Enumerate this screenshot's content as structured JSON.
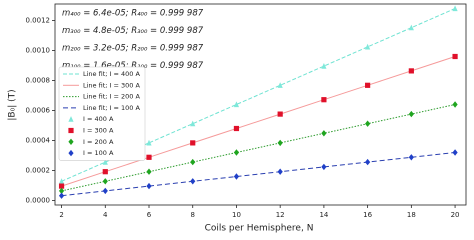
{
  "chart_data": {
    "type": "scatter",
    "xlabel": "Coils per Hemisphere, N",
    "ylabel": "|B₀| (T)",
    "annotations": [
      "m₄₀₀ = 6.4e-05; R₄₀₀ = 0.999 987",
      "m₃₀₀ = 4.8e-05; R₃₀₀ = 0.999 987",
      "m₂₀₀ = 3.2e-05; R₂₀₀ = 0.999 987",
      "m₁₀₀ = 1.6e-05; R₁₀₀ = 0.999 987"
    ],
    "x": [
      2,
      4,
      6,
      8,
      10,
      12,
      14,
      16,
      18,
      20
    ],
    "xlim": [
      1.7,
      20.5
    ],
    "xticks": [
      2,
      4,
      6,
      8,
      10,
      12,
      14,
      16,
      18,
      20
    ],
    "ylim": [
      -3e-05,
      0.00131
    ],
    "yticks": [
      {
        "value": 0,
        "label": "0.0000"
      },
      {
        "value": 0.0002,
        "label": "0.0002"
      },
      {
        "value": 0.0004,
        "label": "0.0004"
      },
      {
        "value": 0.0006,
        "label": "0.0006"
      },
      {
        "value": 0.0008,
        "label": "0.0008"
      },
      {
        "value": 0.001,
        "label": "0.0010"
      },
      {
        "value": 0.0012,
        "label": "0.0012"
      }
    ],
    "legend": "upper left",
    "series": [
      {
        "name": "Line fit; I = 400 A",
        "kind": "line",
        "dash": "4,2",
        "color": "#6fe3d2",
        "values": [
          0.000128,
          0.000256,
          0.000384,
          0.000512,
          0.00064,
          0.000768,
          0.000896,
          0.001024,
          0.001152,
          0.00128
        ]
      },
      {
        "name": "Line fit; I = 300 A",
        "kind": "line",
        "dash": "none",
        "color": "#f59a9a",
        "values": [
          9.6e-05,
          0.000192,
          0.000288,
          0.000384,
          0.00048,
          0.000576,
          0.000672,
          0.000768,
          0.000864,
          0.00096
        ]
      },
      {
        "name": "Line fit; I = 200 A",
        "kind": "line",
        "dash": "1.5,1.5",
        "color": "#2a9a2a",
        "values": [
          6.4e-05,
          0.000128,
          0.000192,
          0.000256,
          0.00032,
          0.000384,
          0.000448,
          0.000512,
          0.000576,
          0.00064
        ]
      },
      {
        "name": "Line fit; I = 100 A",
        "kind": "line",
        "dash": "5,3",
        "color": "#2a3fb0",
        "values": [
          3.2e-05,
          6.4e-05,
          9.6e-05,
          0.000128,
          0.00016,
          0.000192,
          0.000224,
          0.000256,
          0.000288,
          0.00032
        ]
      },
      {
        "name": "I = 400 A",
        "kind": "scatter",
        "marker": "triangle",
        "color": "#7ee8da",
        "values": [
          0.000128,
          0.000256,
          0.000384,
          0.000512,
          0.00064,
          0.000768,
          0.000896,
          0.001024,
          0.001152,
          0.00128
        ]
      },
      {
        "name": "I = 300 A",
        "kind": "scatter",
        "marker": "square",
        "color": "#e0102a",
        "values": [
          9.6e-05,
          0.000192,
          0.000288,
          0.000384,
          0.00048,
          0.000576,
          0.000672,
          0.000768,
          0.000864,
          0.00096
        ]
      },
      {
        "name": "I = 200 A",
        "kind": "scatter",
        "marker": "diamond",
        "color": "#1fa51f",
        "values": [
          6.4e-05,
          0.000128,
          0.000192,
          0.000256,
          0.00032,
          0.000384,
          0.000448,
          0.000512,
          0.000576,
          0.00064
        ]
      },
      {
        "name": "I = 100 A",
        "kind": "scatter",
        "marker": "diamond",
        "color": "#2040c8",
        "values": [
          3.2e-05,
          6.4e-05,
          9.6e-05,
          0.000128,
          0.00016,
          0.000192,
          0.000224,
          0.000256,
          0.000288,
          0.00032
        ]
      }
    ]
  }
}
